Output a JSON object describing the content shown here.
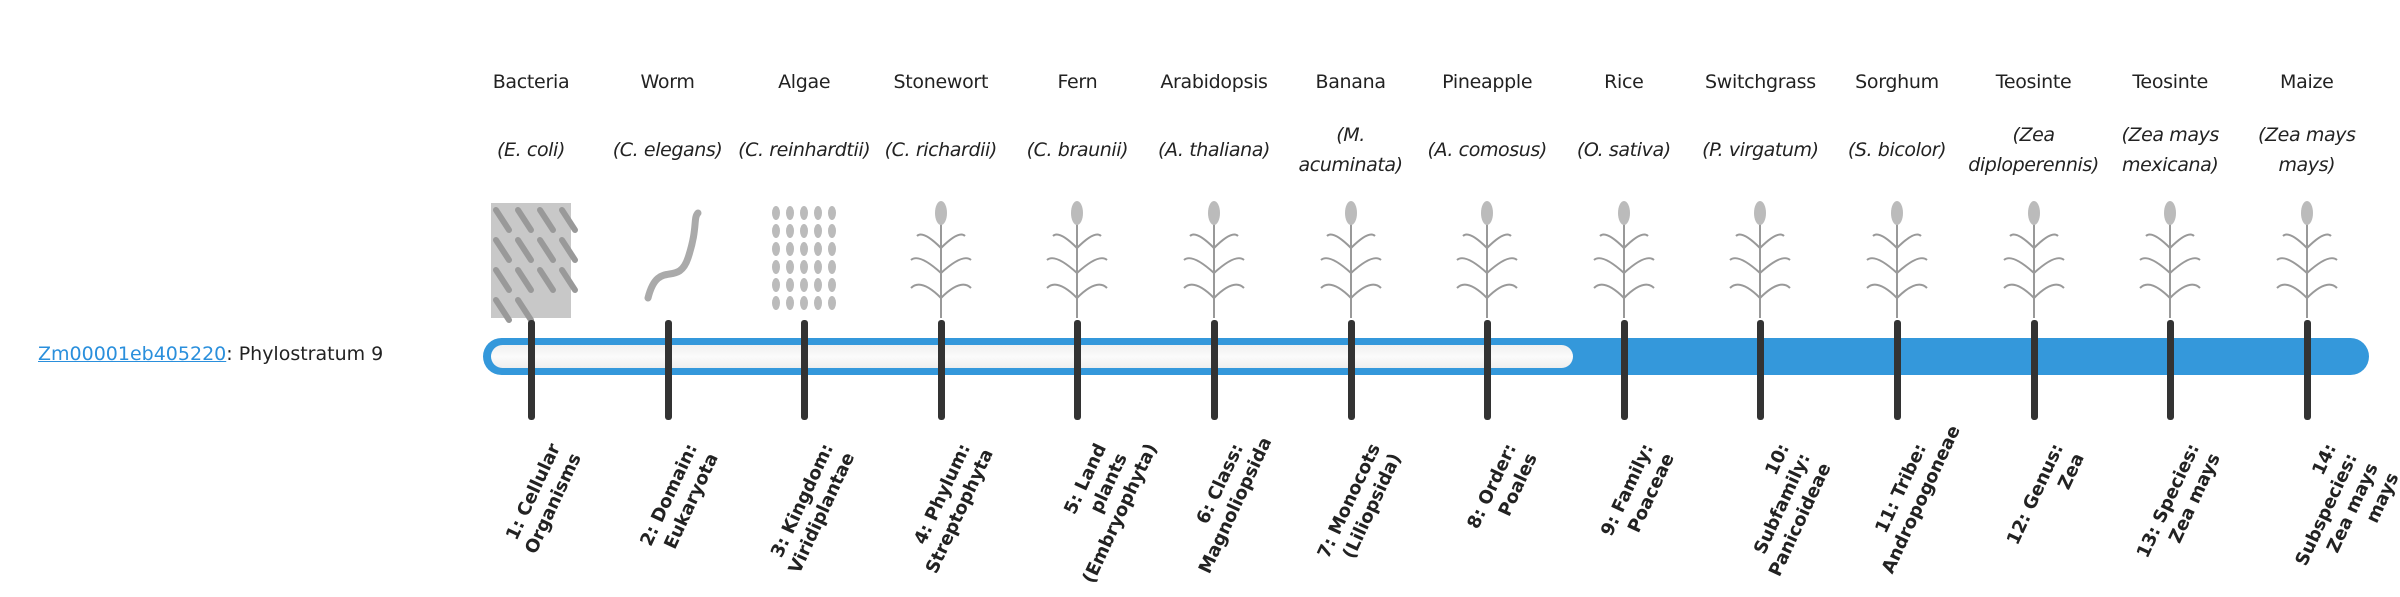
{
  "gene": {
    "id": "Zm00001eb405220",
    "suffix": ": Phylostratum 9",
    "phylostratum": 9,
    "total_strata": 14
  },
  "colors": {
    "accent": "#3498db",
    "tick": "#333333",
    "link": "#2a8fdc"
  },
  "organisms": [
    {
      "common": "Bacteria",
      "scientific": "(E. coli)",
      "icon": "bacteria-illustration"
    },
    {
      "common": "Worm",
      "scientific": "(C. elegans)",
      "icon": "worm-illustration"
    },
    {
      "common": "Algae",
      "scientific": "(C. reinhardtii)",
      "icon": "algae-illustration"
    },
    {
      "common": "Stonewort",
      "scientific": "(C. richardii)",
      "icon": "stonewort-illustration"
    },
    {
      "common": "Fern",
      "scientific": "(C. braunii)",
      "icon": "fern-illustration"
    },
    {
      "common": "Arabidopsis",
      "scientific": "(A. thaliana)",
      "icon": "arabidopsis-illustration"
    },
    {
      "common": "Banana",
      "scientific": "(M. acuminata)",
      "icon": "banana-illustration"
    },
    {
      "common": "Pineapple",
      "scientific": "(A. comosus)",
      "icon": "pineapple-illustration"
    },
    {
      "common": "Rice",
      "scientific": "(O. sativa)",
      "icon": "rice-illustration"
    },
    {
      "common": "Switchgrass",
      "scientific": "(P. virgatum)",
      "icon": "switchgrass-illustration"
    },
    {
      "common": "Sorghum",
      "scientific": "(S. bicolor)",
      "icon": "sorghum-illustration"
    },
    {
      "common": "Teosinte",
      "scientific": "(Zea diploperennis)",
      "icon": "teosinte-illustration"
    },
    {
      "common": "Teosinte",
      "scientific": "(Zea mays mexicana)",
      "icon": "teosinte-illustration"
    },
    {
      "common": "Maize",
      "scientific": "(Zea mays mays)",
      "icon": "maize-illustration"
    }
  ],
  "strata": [
    "1: Cellular Organisms",
    "2: Domain: Eukaryota",
    "3: Kingdom: Viridiplantae",
    "4: Phylum: Streptophyta",
    "5: Land plants (Embryophyta)",
    "6: Class: Magnoliopsida",
    "7: Monocots (Liliopsida)",
    "8: Order: Poales",
    "9: Family: Poaceae",
    "10: Subfamily: Panicoideae",
    "11: Tribe: Andropogoneae",
    "12: Genus: Zea",
    "13: Species: Zea mays",
    "14: Subspecies: Zea mays mays"
  ]
}
